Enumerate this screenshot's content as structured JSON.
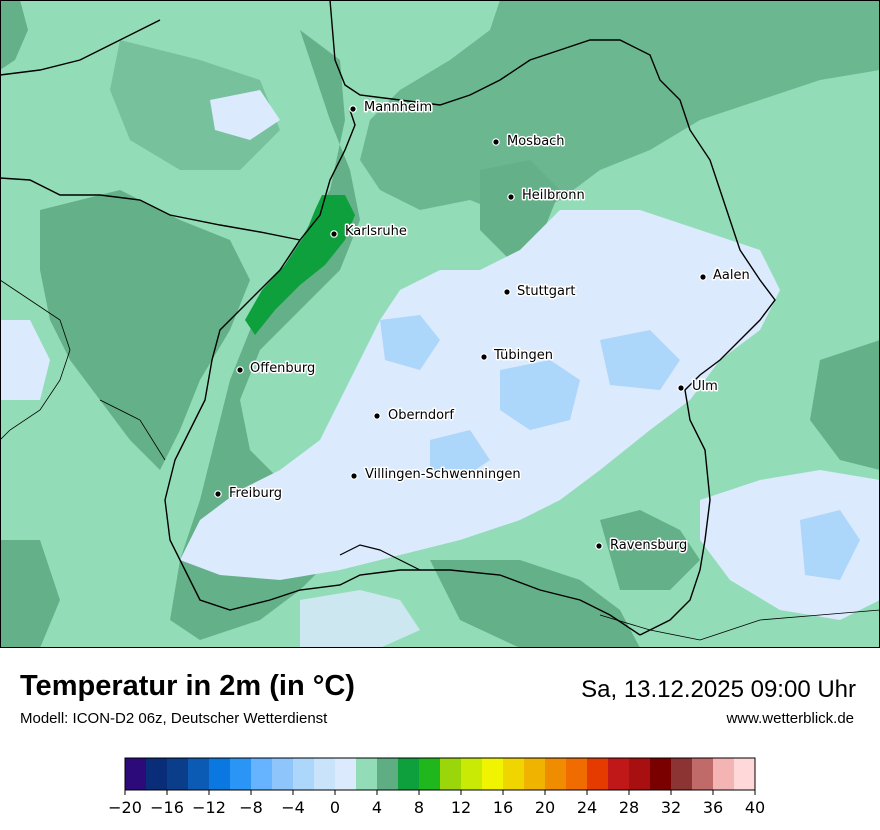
{
  "header": {
    "title": "Temperatur in 2m (in °C)",
    "model": "Modell: ICON-D2 06z, Deutscher Wetterdienst",
    "datetime": "Sa, 13.12.2025 09:00 Uhr",
    "website": "www.wetterblick.de"
  },
  "cities": [
    {
      "name": "Mannheim"
    },
    {
      "name": "Mosbach"
    },
    {
      "name": "Heilbronn"
    },
    {
      "name": "Karlsruhe"
    },
    {
      "name": "Aalen"
    },
    {
      "name": "Stuttgart"
    },
    {
      "name": "Tübingen"
    },
    {
      "name": "Offenburg"
    },
    {
      "name": "Ulm"
    },
    {
      "name": "Oberndorf"
    },
    {
      "name": "Villingen-Schwenningen"
    },
    {
      "name": "Freiburg"
    },
    {
      "name": "Ravensburg"
    }
  ],
  "legend": {
    "tick_labels": [
      "−20",
      "−16",
      "−12",
      "−8",
      "−4",
      "0",
      "4",
      "8",
      "12",
      "16",
      "20",
      "24",
      "28",
      "32",
      "36",
      "40"
    ],
    "colors": [
      "#2d0a7a",
      "#0a2d7a",
      "#0a3d8a",
      "#0b5bb5",
      "#0a78e0",
      "#2b95f5",
      "#66b3ff",
      "#8ec5fb",
      "#add6fb",
      "#c9e3fb",
      "#dbeafd",
      "#93dcb8",
      "#5fae83",
      "#0ea03c",
      "#1fb71c",
      "#9ad60a",
      "#c9ea04",
      "#f0f400",
      "#f0d500",
      "#f0b400",
      "#f08c00",
      "#f06b00",
      "#e53b00",
      "#c01818",
      "#a80f10",
      "#7a0000",
      "#8c3434",
      "#c06a6a",
      "#f5b4b4",
      "#ffd9d9"
    ]
  }
}
